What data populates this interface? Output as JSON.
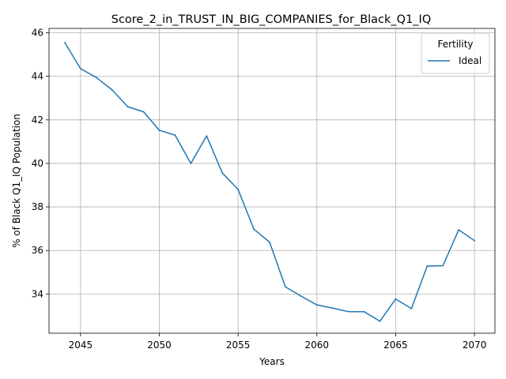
{
  "chart_data": {
    "type": "line",
    "title": "Score_2_in_TRUST_IN_BIG_COMPANIES_for_Black_Q1_IQ",
    "xlabel": "Years",
    "ylabel": "% of Black Q1_IQ Population",
    "xlim": [
      2043,
      2071.3
    ],
    "ylim": [
      32.2,
      46.2
    ],
    "x_ticks": [
      2045,
      2050,
      2055,
      2060,
      2065,
      2070
    ],
    "y_ticks": [
      34,
      36,
      38,
      40,
      42,
      44,
      46
    ],
    "grid": true,
    "legend": {
      "title": "Fertility",
      "position": "top-right"
    },
    "colors": {
      "series": "#1f77b4"
    },
    "series": [
      {
        "name": "Ideal",
        "x": [
          2044,
          2045,
          2046,
          2047,
          2048,
          2049,
          2050,
          2051,
          2052,
          2053,
          2054,
          2055,
          2056,
          2057,
          2058,
          2059,
          2060,
          2061,
          2062,
          2063,
          2064,
          2065,
          2066,
          2067,
          2068,
          2069,
          2070
        ],
        "y": [
          45.55,
          44.35,
          43.95,
          43.38,
          42.6,
          42.37,
          41.52,
          41.3,
          40.0,
          41.26,
          39.56,
          38.8,
          36.98,
          36.38,
          34.33,
          33.9,
          33.5,
          33.35,
          33.19,
          33.19,
          32.75,
          33.77,
          33.33,
          35.28,
          35.3,
          36.95,
          36.45
        ]
      }
    ]
  }
}
